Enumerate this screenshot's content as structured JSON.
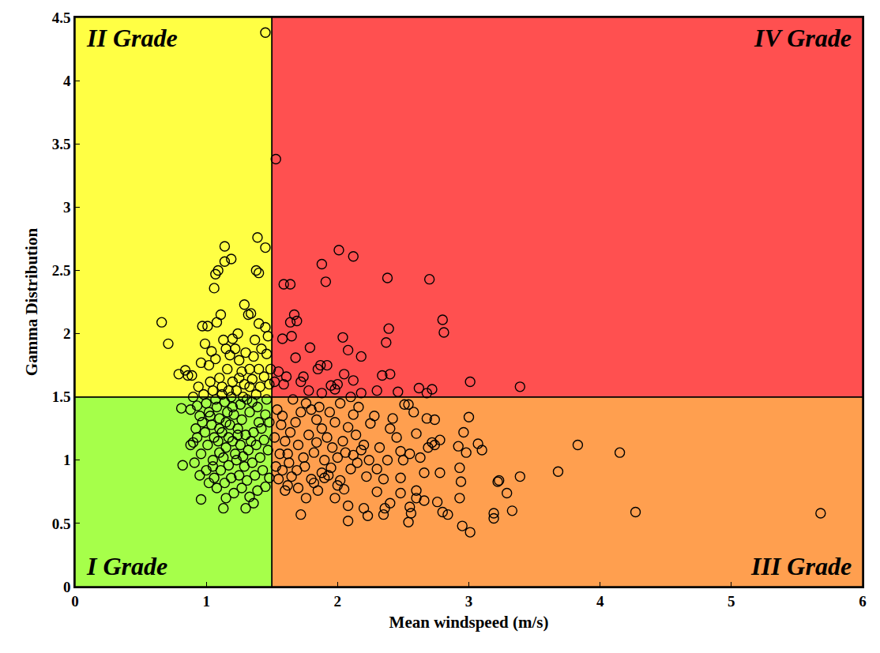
{
  "chart_data": {
    "type": "scatter",
    "marker": "circle-open",
    "color": "#000000",
    "x_label": "Mean windspeed (m/s)",
    "y_label": "Gamma Distribution",
    "xlim": [
      0,
      6
    ],
    "xticks": [
      0,
      1,
      2,
      3,
      4,
      5,
      6
    ],
    "ylim": [
      0,
      4.5
    ],
    "yticks": [
      0,
      0.5,
      1,
      1.5,
      2,
      2.5,
      3,
      3.5,
      4,
      4.5
    ],
    "grid": false,
    "regions": [
      {
        "label": "I Grade",
        "x": [
          0,
          1.5
        ],
        "y": [
          0,
          1.5
        ],
        "color": "#a6ff4a"
      },
      {
        "label": "II Grade",
        "x": [
          0,
          1.5
        ],
        "y": [
          1.5,
          4.5
        ],
        "color": "#ffff44"
      },
      {
        "label": "III Grade",
        "x": [
          1.5,
          6
        ],
        "y": [
          0,
          1.5
        ],
        "color": "#ff9f4f"
      },
      {
        "label": "IV Grade",
        "x": [
          1.5,
          6
        ],
        "y": [
          1.5,
          4.5
        ],
        "color": "#ff5050"
      }
    ],
    "x": [
      1.45,
      1.53,
      1.39,
      1.45,
      1.14,
      1.19,
      1.14,
      1.09,
      1.07,
      1.06,
      1.38,
      1.4,
      0.66,
      0.71,
      1.29,
      1.34,
      1.32,
      1.11,
      0.97,
      1.01,
      1.08,
      1.4,
      1.45,
      1.47,
      1.24,
      1.2,
      1.15,
      1.04,
      0.99,
      1.13,
      0.84,
      0.86,
      0.79,
      0.89,
      0.96,
      1.02,
      1.07,
      1.18,
      1.25,
      1.3,
      1.36,
      1.42,
      1.46,
      1.33,
      1.27,
      1.16,
      1.1,
      1.03,
      0.94,
      0.9,
      0.98,
      1.0,
      0.93,
      0.88,
      0.81,
      0.95,
      1.05,
      1.12,
      1.2,
      1.23,
      1.29,
      1.35,
      1.41,
      1.44,
      1.48,
      1.38,
      1.31,
      1.26,
      1.19,
      1.14,
      1.08,
      1.02,
      0.97,
      0.92,
      0.9,
      0.88,
      0.93,
      0.99,
      1.04,
      1.1,
      1.16,
      1.21,
      1.27,
      1.33,
      1.39,
      1.45,
      1.48,
      1.42,
      1.36,
      1.3,
      1.24,
      1.18,
      1.12,
      1.06,
      1.01,
      0.96,
      0.91,
      0.82,
      0.95,
      1.0,
      1.05,
      1.1,
      1.15,
      1.2,
      1.26,
      1.32,
      1.38,
      1.44,
      1.47,
      1.41,
      1.35,
      1.29,
      1.23,
      1.17,
      1.11,
      1.06,
      1.02,
      1.08,
      1.14,
      1.19,
      1.25,
      1.31,
      1.37,
      1.43,
      1.48,
      1.45,
      1.39,
      1.33,
      1.27,
      1.21,
      1.15,
      1.13,
      0.96,
      1.3,
      1.36,
      1.05,
      1.13,
      1.22,
      1.28,
      1.34,
      1.17,
      1.09,
      1.24,
      1.4,
      1.15,
      1.2,
      1.28,
      1.35,
      1.46,
      1.12,
      1.07,
      1.17,
      1.25,
      1.33,
      1.4,
      1.22,
      1.37,
      1.49,
      1.1,
      1.03,
      2.01,
      2.12,
      1.88,
      1.91,
      1.59,
      1.64,
      2.38,
      2.7,
      2.8,
      2.81,
      2.39,
      2.37,
      1.67,
      1.69,
      1.64,
      1.65,
      1.58,
      2.04,
      2.08,
      2.18,
      1.79,
      1.68,
      2.4,
      2.34,
      3.01,
      3.39,
      2.72,
      2.68,
      2.62,
      2.51,
      2.46,
      2.3,
      2.18,
      2.12,
      2.05,
      1.95,
      1.85,
      1.87,
      1.92,
      1.98,
      1.74,
      1.72,
      1.61,
      1.59,
      1.78,
      1.88,
      2.0,
      2.1,
      1.55,
      1.52,
      5.68,
      4.27,
      4.15,
      3.83,
      3.68,
      3.39,
      3.33,
      3.29,
      3.23,
      3.22,
      3.19,
      3.19,
      3.1,
      3.07,
      3.01,
      3.0,
      2.96,
      2.98,
      2.95,
      2.93,
      2.94,
      2.93,
      2.92,
      2.84,
      2.8,
      2.78,
      2.76,
      2.78,
      2.74,
      2.72,
      2.74,
      2.68,
      2.69,
      2.66,
      2.66,
      2.6,
      2.6,
      2.63,
      2.6,
      2.58,
      2.54,
      2.55,
      2.55,
      2.56,
      2.54,
      2.48,
      2.48,
      2.48,
      2.45,
      2.42,
      2.4,
      2.38,
      2.35,
      2.36,
      2.4,
      2.35,
      2.3,
      2.3,
      2.28,
      2.25,
      2.23,
      2.2,
      2.22,
      2.2,
      2.15,
      2.12,
      2.1,
      2.08,
      2.08,
      2.05,
      2.02,
      2.0,
      1.98,
      1.95,
      1.93,
      1.9,
      1.88,
      1.85,
      1.82,
      1.8,
      1.76,
      1.72,
      1.7,
      1.65,
      1.62,
      1.6,
      1.58,
      1.55,
      1.53,
      1.56,
      1.6,
      1.64,
      1.68,
      1.72,
      1.76,
      1.8,
      1.84,
      1.88,
      1.92,
      1.96,
      2.0,
      2.04,
      2.08,
      2.12,
      2.16,
      2.02,
      1.94,
      1.86,
      1.78,
      1.7,
      1.62,
      1.57,
      1.54,
      1.66,
      1.74,
      1.82,
      1.9,
      1.98,
      2.06,
      2.14,
      1.52,
      1.58,
      1.63,
      1.69,
      1.75,
      1.84,
      2.18,
      2.24,
      2.32,
      2.5
    ],
    "values": [
      4.38,
      3.38,
      2.76,
      2.68,
      2.69,
      2.59,
      2.57,
      2.5,
      2.47,
      2.36,
      2.5,
      2.48,
      2.09,
      1.92,
      2.23,
      2.16,
      2.15,
      2.15,
      2.06,
      2.06,
      2.09,
      2.08,
      2.05,
      1.98,
      2.0,
      1.96,
      1.88,
      1.86,
      1.92,
      1.95,
      1.71,
      1.67,
      1.68,
      1.67,
      1.77,
      1.75,
      1.8,
      1.83,
      1.79,
      1.85,
      1.82,
      1.88,
      1.84,
      1.72,
      1.7,
      1.72,
      1.65,
      1.62,
      1.58,
      1.5,
      1.52,
      1.45,
      1.43,
      1.4,
      1.41,
      1.35,
      1.55,
      1.58,
      1.62,
      1.55,
      1.6,
      1.64,
      1.58,
      1.66,
      1.6,
      1.52,
      1.48,
      1.44,
      1.5,
      1.46,
      1.42,
      1.38,
      1.3,
      1.25,
      1.14,
      1.12,
      1.18,
      1.22,
      1.28,
      1.33,
      1.38,
      1.36,
      1.32,
      1.38,
      1.42,
      1.36,
      1.3,
      1.25,
      1.22,
      1.2,
      1.25,
      1.28,
      1.22,
      1.18,
      1.12,
      1.05,
      0.98,
      0.96,
      0.88,
      0.92,
      1.0,
      1.06,
      1.1,
      1.15,
      1.12,
      1.08,
      1.12,
      1.16,
      1.08,
      1.02,
      0.98,
      0.95,
      1.0,
      0.96,
      0.92,
      0.86,
      0.82,
      0.78,
      0.82,
      0.86,
      0.88,
      0.84,
      0.88,
      0.92,
      0.86,
      0.79,
      0.76,
      0.71,
      0.78,
      0.74,
      0.7,
      0.62,
      0.69,
      0.62,
      0.66,
      0.95,
      1.02,
      1.05,
      1.03,
      1.15,
      1.18,
      1.15,
      1.2,
      1.3,
      1.3,
      1.42,
      1.5,
      1.46,
      1.48,
      1.52,
      1.48,
      1.55,
      1.65,
      1.58,
      1.72,
      1.88,
      1.95,
      1.72,
      1.25,
      1.35,
      2.66,
      2.61,
      2.55,
      2.41,
      2.39,
      2.39,
      2.44,
      2.43,
      2.11,
      2.01,
      2.04,
      1.93,
      2.15,
      2.1,
      2.09,
      1.98,
      1.96,
      1.97,
      1.87,
      1.82,
      1.89,
      1.81,
      1.68,
      1.67,
      1.62,
      1.58,
      1.56,
      1.53,
      1.57,
      1.44,
      1.54,
      1.55,
      1.53,
      1.63,
      1.68,
      1.59,
      1.72,
      1.75,
      1.75,
      1.56,
      1.66,
      1.62,
      1.66,
      1.6,
      1.55,
      1.53,
      1.6,
      1.5,
      1.7,
      1.62,
      0.58,
      0.59,
      1.06,
      1.12,
      0.91,
      0.87,
      0.6,
      0.74,
      0.84,
      0.83,
      0.58,
      0.54,
      1.08,
      1.13,
      0.43,
      1.34,
      1.22,
      1.06,
      0.48,
      0.7,
      0.83,
      0.94,
      1.11,
      0.57,
      0.59,
      0.9,
      0.67,
      1.16,
      1.12,
      1.14,
      1.32,
      1.33,
      1.1,
      0.9,
      0.68,
      0.76,
      0.7,
      1.02,
      1.21,
      1.38,
      1.44,
      1.05,
      0.63,
      0.58,
      0.51,
      0.86,
      0.74,
      1.07,
      1.18,
      1.33,
      1.25,
      1.0,
      0.85,
      0.62,
      0.66,
      0.57,
      0.93,
      0.75,
      1.35,
      1.29,
      0.56,
      0.62,
      0.87,
      1.12,
      0.98,
      1.04,
      0.93,
      0.64,
      0.52,
      0.77,
      0.84,
      0.8,
      0.7,
      0.94,
      0.88,
      0.86,
      0.9,
      0.76,
      0.82,
      0.85,
      0.7,
      0.57,
      0.78,
      0.87,
      0.8,
      0.76,
      0.92,
      0.85,
      0.95,
      1.05,
      1.15,
      1.22,
      1.3,
      1.38,
      1.45,
      1.4,
      1.32,
      1.25,
      1.18,
      1.1,
      1.02,
      1.15,
      1.26,
      1.36,
      1.42,
      1.45,
      1.38,
      1.42,
      1.2,
      1.12,
      1.05,
      1.28,
      1.4,
      1.48,
      1.02,
      1.06,
      1.0,
      1.3,
      1.06,
      1.2,
      1.18,
      1.35,
      0.98,
      0.92,
      0.95,
      1.14,
      1.08,
      1.0,
      1.1,
      1.0
    ]
  }
}
